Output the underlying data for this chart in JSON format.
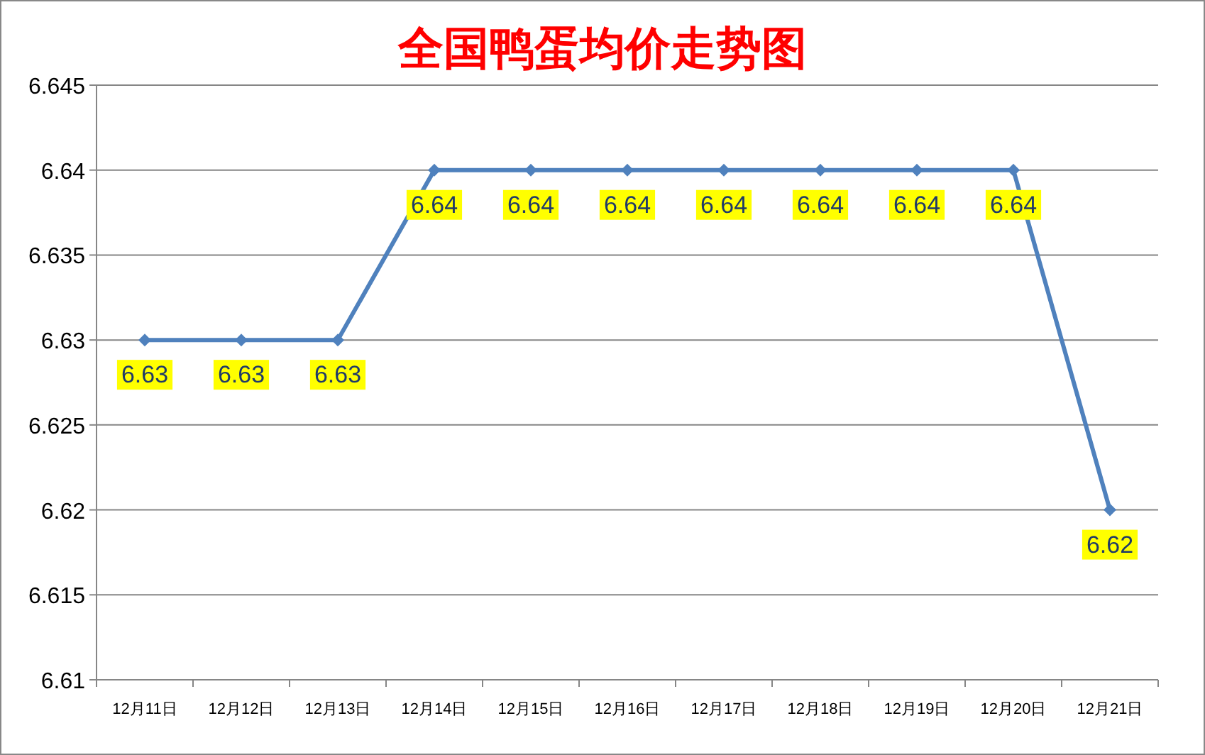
{
  "chart_data": {
    "type": "line",
    "title": "全国鸭蛋均价走势图",
    "categories": [
      "12月11日",
      "12月12日",
      "12月13日",
      "12月14日",
      "12月15日",
      "12月16日",
      "12月17日",
      "12月18日",
      "12月19日",
      "12月20日",
      "12月21日"
    ],
    "series": [
      {
        "color": "#4f81bd",
        "values": [
          6.63,
          6.63,
          6.63,
          6.64,
          6.64,
          6.64,
          6.64,
          6.64,
          6.64,
          6.64,
          6.62
        ]
      }
    ],
    "ylim": [
      6.61,
      6.645
    ],
    "yticks": [
      6.61,
      6.615,
      6.62,
      6.625,
      6.63,
      6.635,
      6.64,
      6.645
    ],
    "grid": "y",
    "marker": "diamond",
    "data_labels": true
  }
}
